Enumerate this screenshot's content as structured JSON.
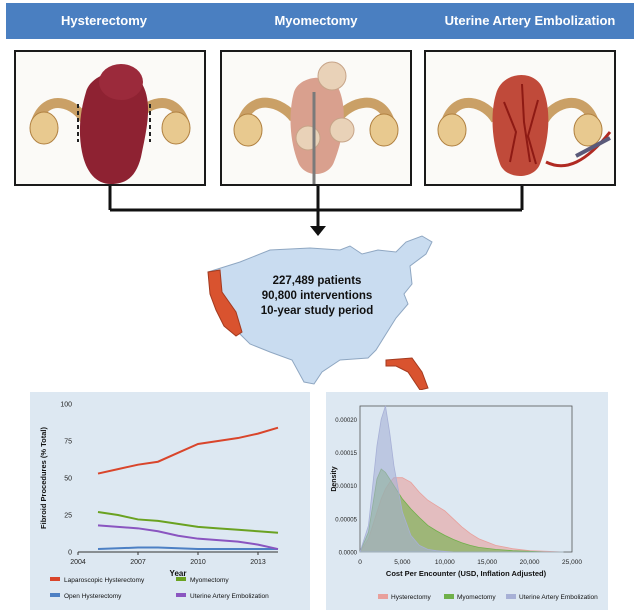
{
  "header": {
    "labels": [
      "Hysterectomy",
      "Myomectomy",
      "Uterine Artery Embolization"
    ],
    "color": "#4a7fc1"
  },
  "stats": {
    "patients": "227,489 patients",
    "interventions": "90,800 interventions",
    "period": "10-year study period"
  },
  "map": {
    "fill": "#c9dcf0",
    "highlight": "#d9532f"
  },
  "chart_data": [
    {
      "type": "line",
      "xlabel": "Year",
      "ylabel": "Fibroid Procedures (% Total)",
      "xlim": [
        2004,
        2014
      ],
      "ylim": [
        0,
        100
      ],
      "xticks": [
        2004,
        2007,
        2010,
        2013
      ],
      "yticks": [
        0,
        25,
        50,
        75,
        100
      ],
      "x": [
        2005,
        2006,
        2007,
        2008,
        2009,
        2010,
        2011,
        2012,
        2013,
        2014
      ],
      "series": [
        {
          "name": "Laparoscopic Hysterectomy",
          "color": "#d9452b",
          "values": [
            53,
            56,
            59,
            61,
            67,
            73,
            75,
            77,
            80,
            84
          ]
        },
        {
          "name": "Myomectomy",
          "color": "#6aa221",
          "values": [
            27,
            25,
            22,
            21,
            19,
            17,
            16,
            15,
            14,
            13
          ]
        },
        {
          "name": "Open Hysterectomy",
          "color": "#4d80c4",
          "values": [
            2,
            2.5,
            3,
            3,
            2.5,
            2,
            2,
            2,
            2,
            2
          ]
        },
        {
          "name": "Uterine Artery Embolization",
          "color": "#8a55c0",
          "values": [
            18,
            17,
            16,
            14,
            11,
            9,
            8,
            7,
            5,
            2
          ]
        }
      ]
    },
    {
      "type": "area",
      "xlabel": "Cost Per Encounter (USD, Inflation Adjusted)",
      "ylabel": "Density",
      "xlim": [
        0,
        25000
      ],
      "ylim": [
        0,
        0.00022
      ],
      "xticks": [
        0,
        5000,
        10000,
        15000,
        20000,
        25000
      ],
      "xticklabels": [
        "0",
        "5,000",
        "10,000",
        "15,000",
        "20,000",
        "25,000"
      ],
      "yticks": [
        0,
        5e-05,
        0.0001,
        0.00015,
        0.0002
      ],
      "yticklabels": [
        "0.0000",
        "0.00005",
        "0.00010",
        "0.00015",
        "0.00020"
      ],
      "x": [
        0,
        1000,
        2000,
        2500,
        3000,
        3500,
        4000,
        5000,
        6000,
        7000,
        8000,
        9000,
        10000,
        11000,
        12000,
        13000,
        14000,
        16000,
        18000,
        20000,
        22000,
        24000
      ],
      "series": [
        {
          "name": "Hysterectomy",
          "color": "#e8a09c",
          "values": [
            0,
            2e-05,
            6e-05,
            8e-05,
            9.5e-05,
            0.000105,
            0.000112,
            0.000112,
            0.000105,
            9e-05,
            7.8e-05,
            7e-05,
            6.2e-05,
            5e-05,
            3.8e-05,
            2.8e-05,
            2e-05,
            1e-05,
            5e-06,
            2e-06,
            1e-06,
            0
          ]
        },
        {
          "name": "Myomectomy",
          "color": "#6fb04a",
          "values": [
            0,
            3e-05,
            0.00011,
            0.000125,
            0.00012,
            0.00011,
            0.0001,
            8e-05,
            6.5e-05,
            5.2e-05,
            4e-05,
            3.2e-05,
            2.5e-05,
            1.9e-05,
            1.4e-05,
            1e-05,
            7e-06,
            4e-06,
            2e-06,
            1e-06,
            0,
            0
          ]
        },
        {
          "name": "Uterine Artery Embolization",
          "color": "#a7b0d6",
          "values": [
            0,
            4e-05,
            0.00016,
            0.0002,
            0.00022,
            0.00018,
            0.00013,
            6e-05,
            2.5e-05,
            1e-05,
            4e-06,
            2e-06,
            1e-06,
            0,
            0,
            0,
            0,
            0,
            0,
            0,
            0,
            0
          ]
        }
      ]
    }
  ]
}
